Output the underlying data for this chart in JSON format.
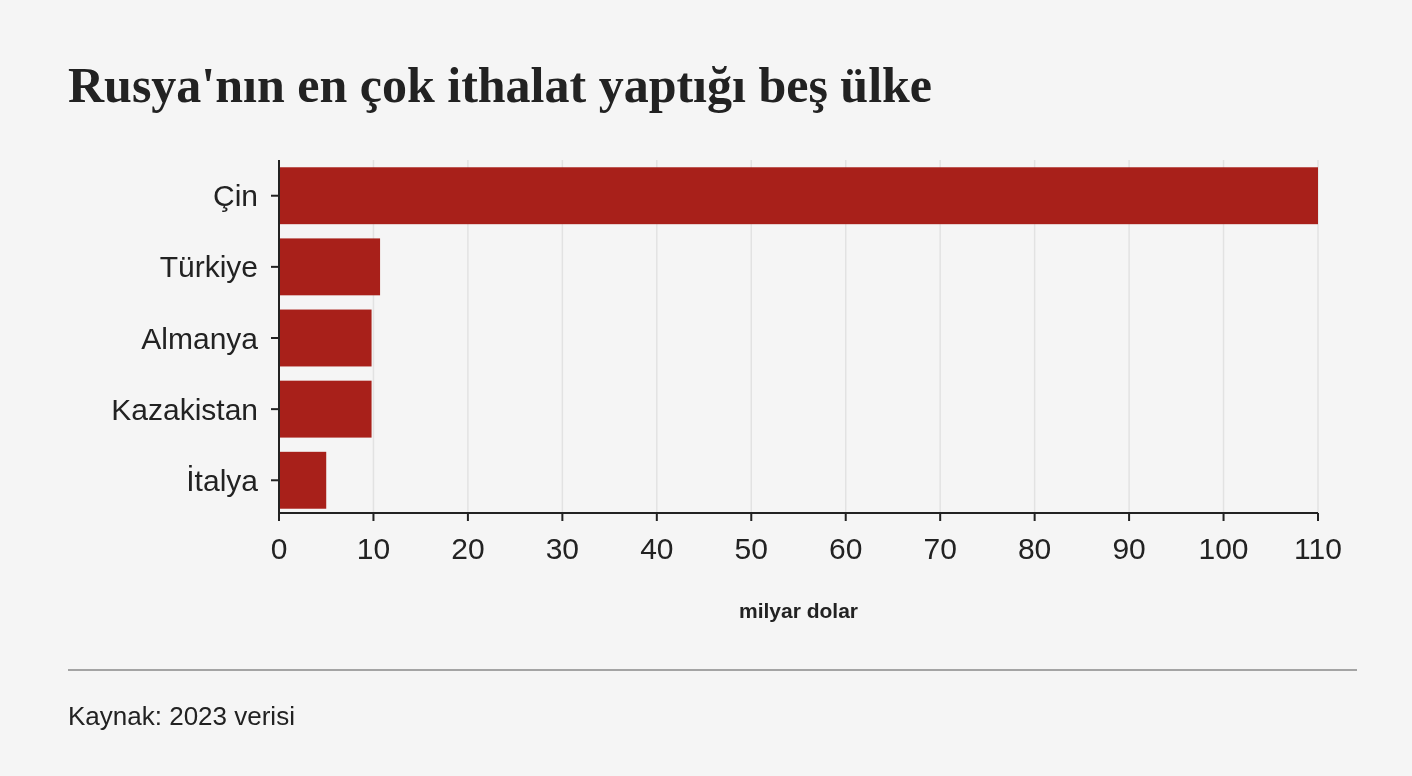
{
  "chart_data": {
    "type": "bar",
    "orientation": "horizontal",
    "title": "Rusya'nın en çok ithalat yaptığı beş ülke",
    "categories": [
      "Çin",
      "Türkiye",
      "Almanya",
      "Kazakistan",
      "İtalya"
    ],
    "values": [
      110,
      10.7,
      9.8,
      9.8,
      5
    ],
    "color": "#a8201a",
    "xlim": [
      0,
      110
    ],
    "xticks": [
      0,
      10,
      20,
      30,
      40,
      50,
      60,
      70,
      80,
      90,
      100,
      110
    ],
    "xlabel": "milyar dolar",
    "grid": "x",
    "annotations": [
      "Kaynak: 2023 verisi"
    ]
  }
}
